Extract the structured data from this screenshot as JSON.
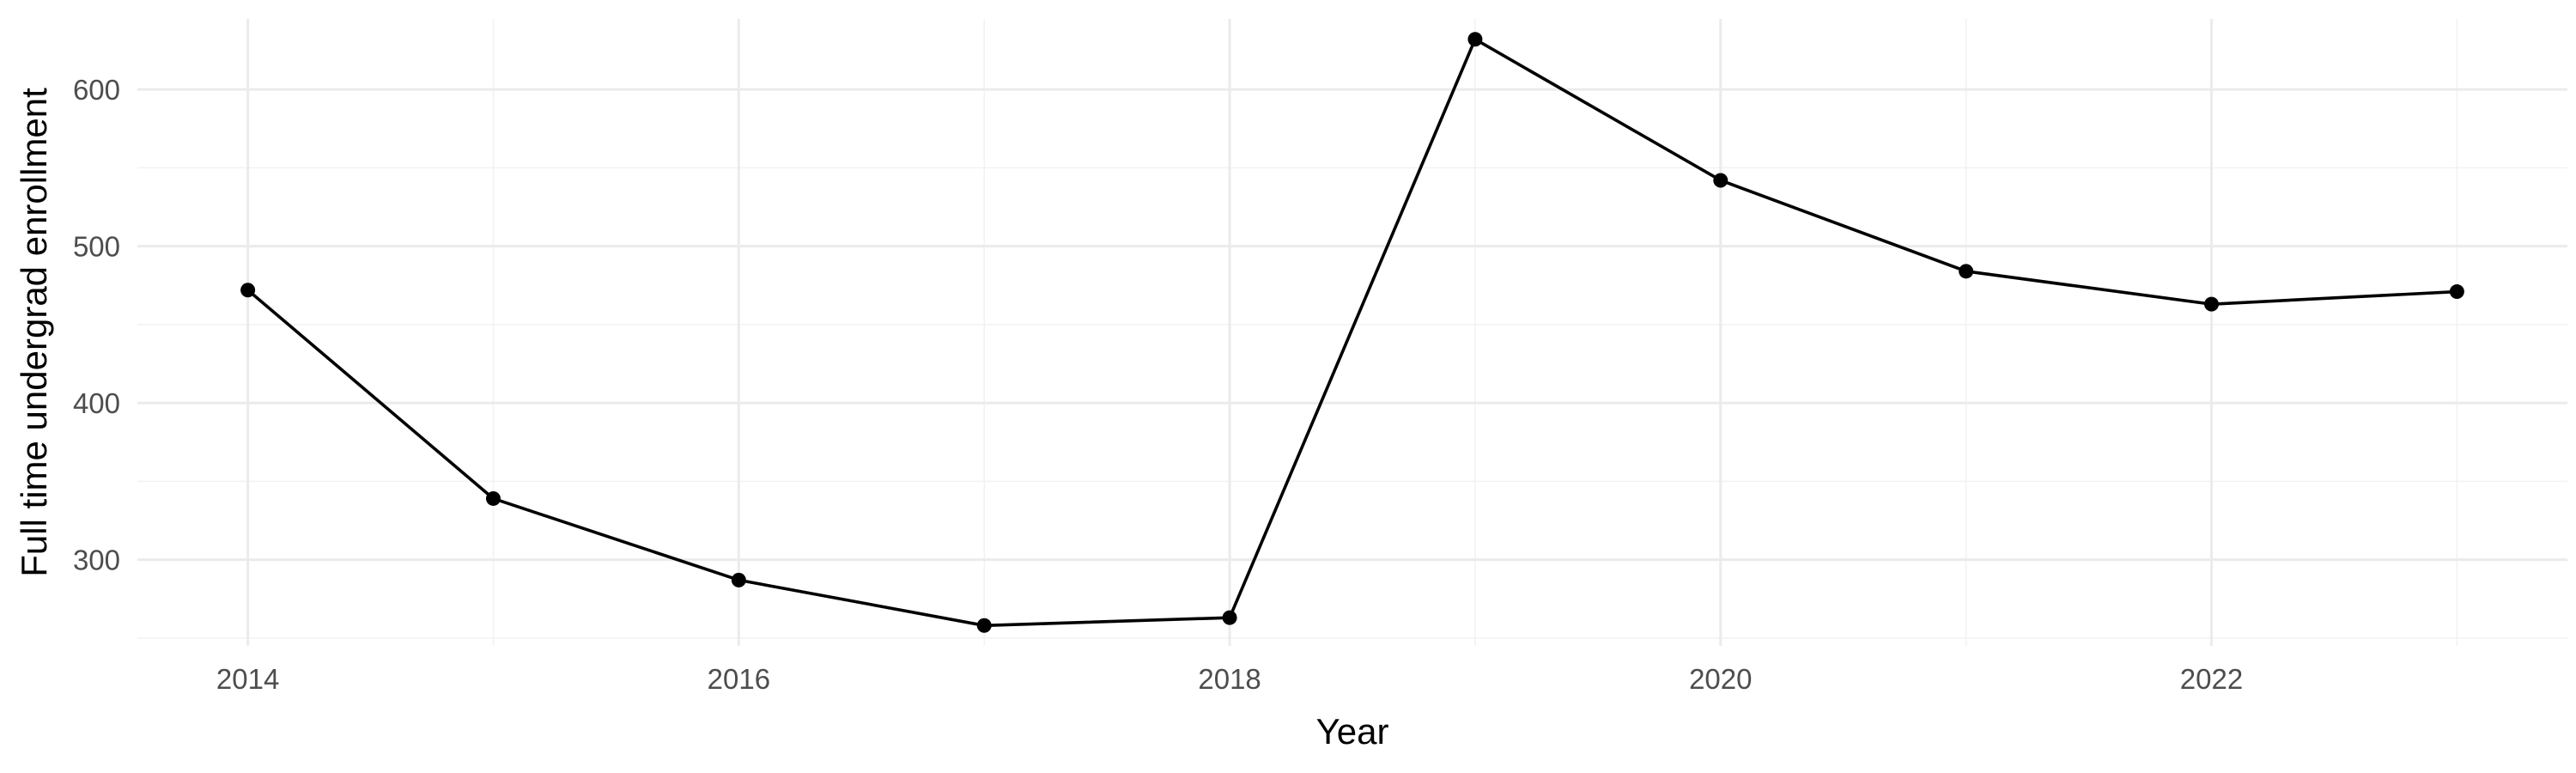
{
  "chart_data": {
    "type": "line",
    "title": "",
    "xlabel": "Year",
    "ylabel": "Full time undergrad enrollment",
    "x": [
      2014,
      2015,
      2016,
      2017,
      2018,
      2019,
      2020,
      2021,
      2022,
      2023
    ],
    "series": [
      {
        "values": [
          472,
          339,
          287,
          258,
          263,
          632,
          542,
          484,
          463,
          471
        ]
      }
    ],
    "xlim": [
      2013.55,
      2023.45
    ],
    "ylim": [
      245,
      645
    ],
    "x_ticks": [
      2014,
      2016,
      2018,
      2020,
      2022
    ],
    "x_tick_labels": [
      "2014",
      "2016",
      "2018",
      "2020",
      "2022"
    ],
    "y_ticks": [
      300,
      400,
      500,
      600
    ],
    "y_tick_labels": [
      "300",
      "400",
      "500",
      "600"
    ],
    "grid": true,
    "legend": "none",
    "colors": {
      "line": "#000000",
      "point": "#000000",
      "grid_major": "#ebebeb",
      "grid_minor": "#f2f2f2",
      "tick_text": "#4d4d4d"
    }
  }
}
